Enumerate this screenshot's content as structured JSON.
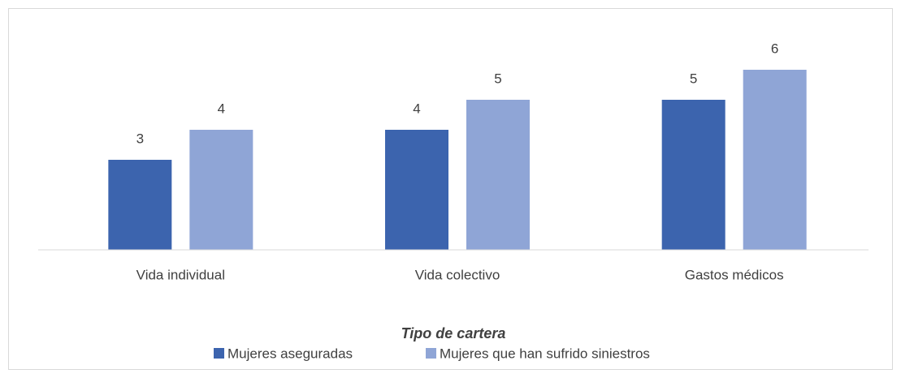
{
  "chart_data": {
    "type": "bar",
    "categories": [
      "Vida individual",
      "Vida colectivo",
      "Gastos médicos"
    ],
    "series": [
      {
        "name": "Mujeres aseguradas",
        "color": "#3c64ae",
        "values": [
          3,
          4,
          5
        ]
      },
      {
        "name": "Mujeres que han sufrido siniestros",
        "color": "#8fa5d6",
        "values": [
          4,
          5,
          6
        ]
      }
    ],
    "x_label": "Tipo de cartera",
    "ylim": [
      0,
      7
    ],
    "legend": "bottom"
  }
}
